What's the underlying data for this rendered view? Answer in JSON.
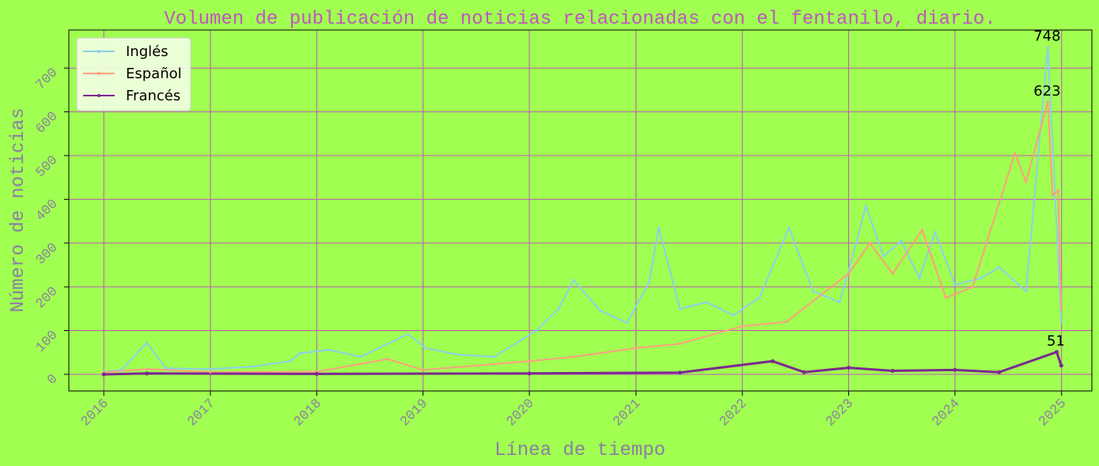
{
  "colors": {
    "background": "#a0ff50",
    "plot_background": "#a0ff50",
    "grid": "#c154c1",
    "title": "#c154c1",
    "axis_text": "#8b7fa4",
    "legend_bg": "#f3ffe6",
    "annotation": "#000000"
  },
  "chart_data": {
    "type": "line",
    "title": "Volumen de publicación de noticias relacionadas con el fentanilo, diario.",
    "xlabel": "Línea de tiempo",
    "ylabel": "Número de noticias",
    "x_range": [
      "2015-09-03",
      "2025-04-15"
    ],
    "ylim": [
      -38,
      787
    ],
    "x_ticks": [
      "2016",
      "2017",
      "2018",
      "2019",
      "2020",
      "2021",
      "2022",
      "2023",
      "2024",
      "2025"
    ],
    "y_ticks": [
      0,
      100,
      200,
      300,
      400,
      500,
      600,
      700
    ],
    "grid": true,
    "legend_position": "top-left",
    "series": [
      {
        "name": "Inglés",
        "color": "#8ecfe9",
        "points": [
          [
            "2016-01-01",
            6
          ],
          [
            "2016-03-01",
            10
          ],
          [
            "2016-05-28",
            72
          ],
          [
            "2016-08-01",
            14
          ],
          [
            "2017-01-01",
            12
          ],
          [
            "2017-06-01",
            18
          ],
          [
            "2017-10-01",
            30
          ],
          [
            "2017-11-05",
            48
          ],
          [
            "2018-02-10",
            56
          ],
          [
            "2018-06-01",
            40
          ],
          [
            "2018-11-10",
            92
          ],
          [
            "2019-01-10",
            60
          ],
          [
            "2019-05-01",
            45
          ],
          [
            "2019-09-01",
            40
          ],
          [
            "2020-01-25",
            100
          ],
          [
            "2020-04-10",
            150
          ],
          [
            "2020-06-01",
            215
          ],
          [
            "2020-09-01",
            145
          ],
          [
            "2020-12-01",
            118
          ],
          [
            "2021-02-15",
            210
          ],
          [
            "2021-03-20",
            335
          ],
          [
            "2021-06-01",
            150
          ],
          [
            "2021-09-01",
            165
          ],
          [
            "2021-12-01",
            135
          ],
          [
            "2022-03-01",
            175
          ],
          [
            "2022-06-10",
            335
          ],
          [
            "2022-09-01",
            190
          ],
          [
            "2022-12-01",
            165
          ],
          [
            "2023-01-25",
            295
          ],
          [
            "2023-03-01",
            385
          ],
          [
            "2023-05-01",
            270
          ],
          [
            "2023-07-01",
            305
          ],
          [
            "2023-09-01",
            220
          ],
          [
            "2023-10-25",
            325
          ],
          [
            "2024-01-01",
            205
          ],
          [
            "2024-04-01",
            220
          ],
          [
            "2024-06-01",
            245
          ],
          [
            "2024-09-01",
            190
          ],
          [
            "2024-11-15",
            748
          ],
          [
            "2024-12-31",
            120
          ]
        ]
      },
      {
        "name": "Español",
        "color": "#ff9e80",
        "points": [
          [
            "2016-01-01",
            5
          ],
          [
            "2016-06-01",
            12
          ],
          [
            "2017-01-01",
            5
          ],
          [
            "2018-01-01",
            6
          ],
          [
            "2018-09-01",
            35
          ],
          [
            "2019-01-01",
            10
          ],
          [
            "2020-01-01",
            30
          ],
          [
            "2020-06-01",
            40
          ],
          [
            "2021-01-01",
            60
          ],
          [
            "2021-06-01",
            70
          ],
          [
            "2022-01-01",
            110
          ],
          [
            "2022-06-01",
            120
          ],
          [
            "2023-01-01",
            230
          ],
          [
            "2023-03-15",
            300
          ],
          [
            "2023-06-01",
            230
          ],
          [
            "2023-09-10",
            330
          ],
          [
            "2023-12-01",
            175
          ],
          [
            "2024-03-01",
            200
          ],
          [
            "2024-07-25",
            505
          ],
          [
            "2024-09-01",
            440
          ],
          [
            "2024-11-15",
            623
          ],
          [
            "2024-12-01",
            410
          ],
          [
            "2024-12-20",
            420
          ],
          [
            "2024-12-31",
            150
          ]
        ]
      },
      {
        "name": "Francés",
        "color": "#7b2891",
        "points": [
          [
            "2016-01-01",
            0
          ],
          [
            "2016-05-28",
            2
          ],
          [
            "2018-01-01",
            1
          ],
          [
            "2020-01-01",
            2
          ],
          [
            "2021-06-01",
            4
          ],
          [
            "2022-04-15",
            30
          ],
          [
            "2022-08-01",
            5
          ],
          [
            "2023-01-01",
            15
          ],
          [
            "2023-06-01",
            8
          ],
          [
            "2024-01-01",
            10
          ],
          [
            "2024-06-01",
            5
          ],
          [
            "2024-12-15",
            51
          ],
          [
            "2024-12-31",
            20
          ]
        ]
      }
    ],
    "annotations": [
      {
        "text": "748",
        "x": "2024-11-15",
        "y": 748
      },
      {
        "text": "623",
        "x": "2024-11-15",
        "y": 623
      },
      {
        "text": "51",
        "x": "2024-12-15",
        "y": 51
      }
    ]
  }
}
